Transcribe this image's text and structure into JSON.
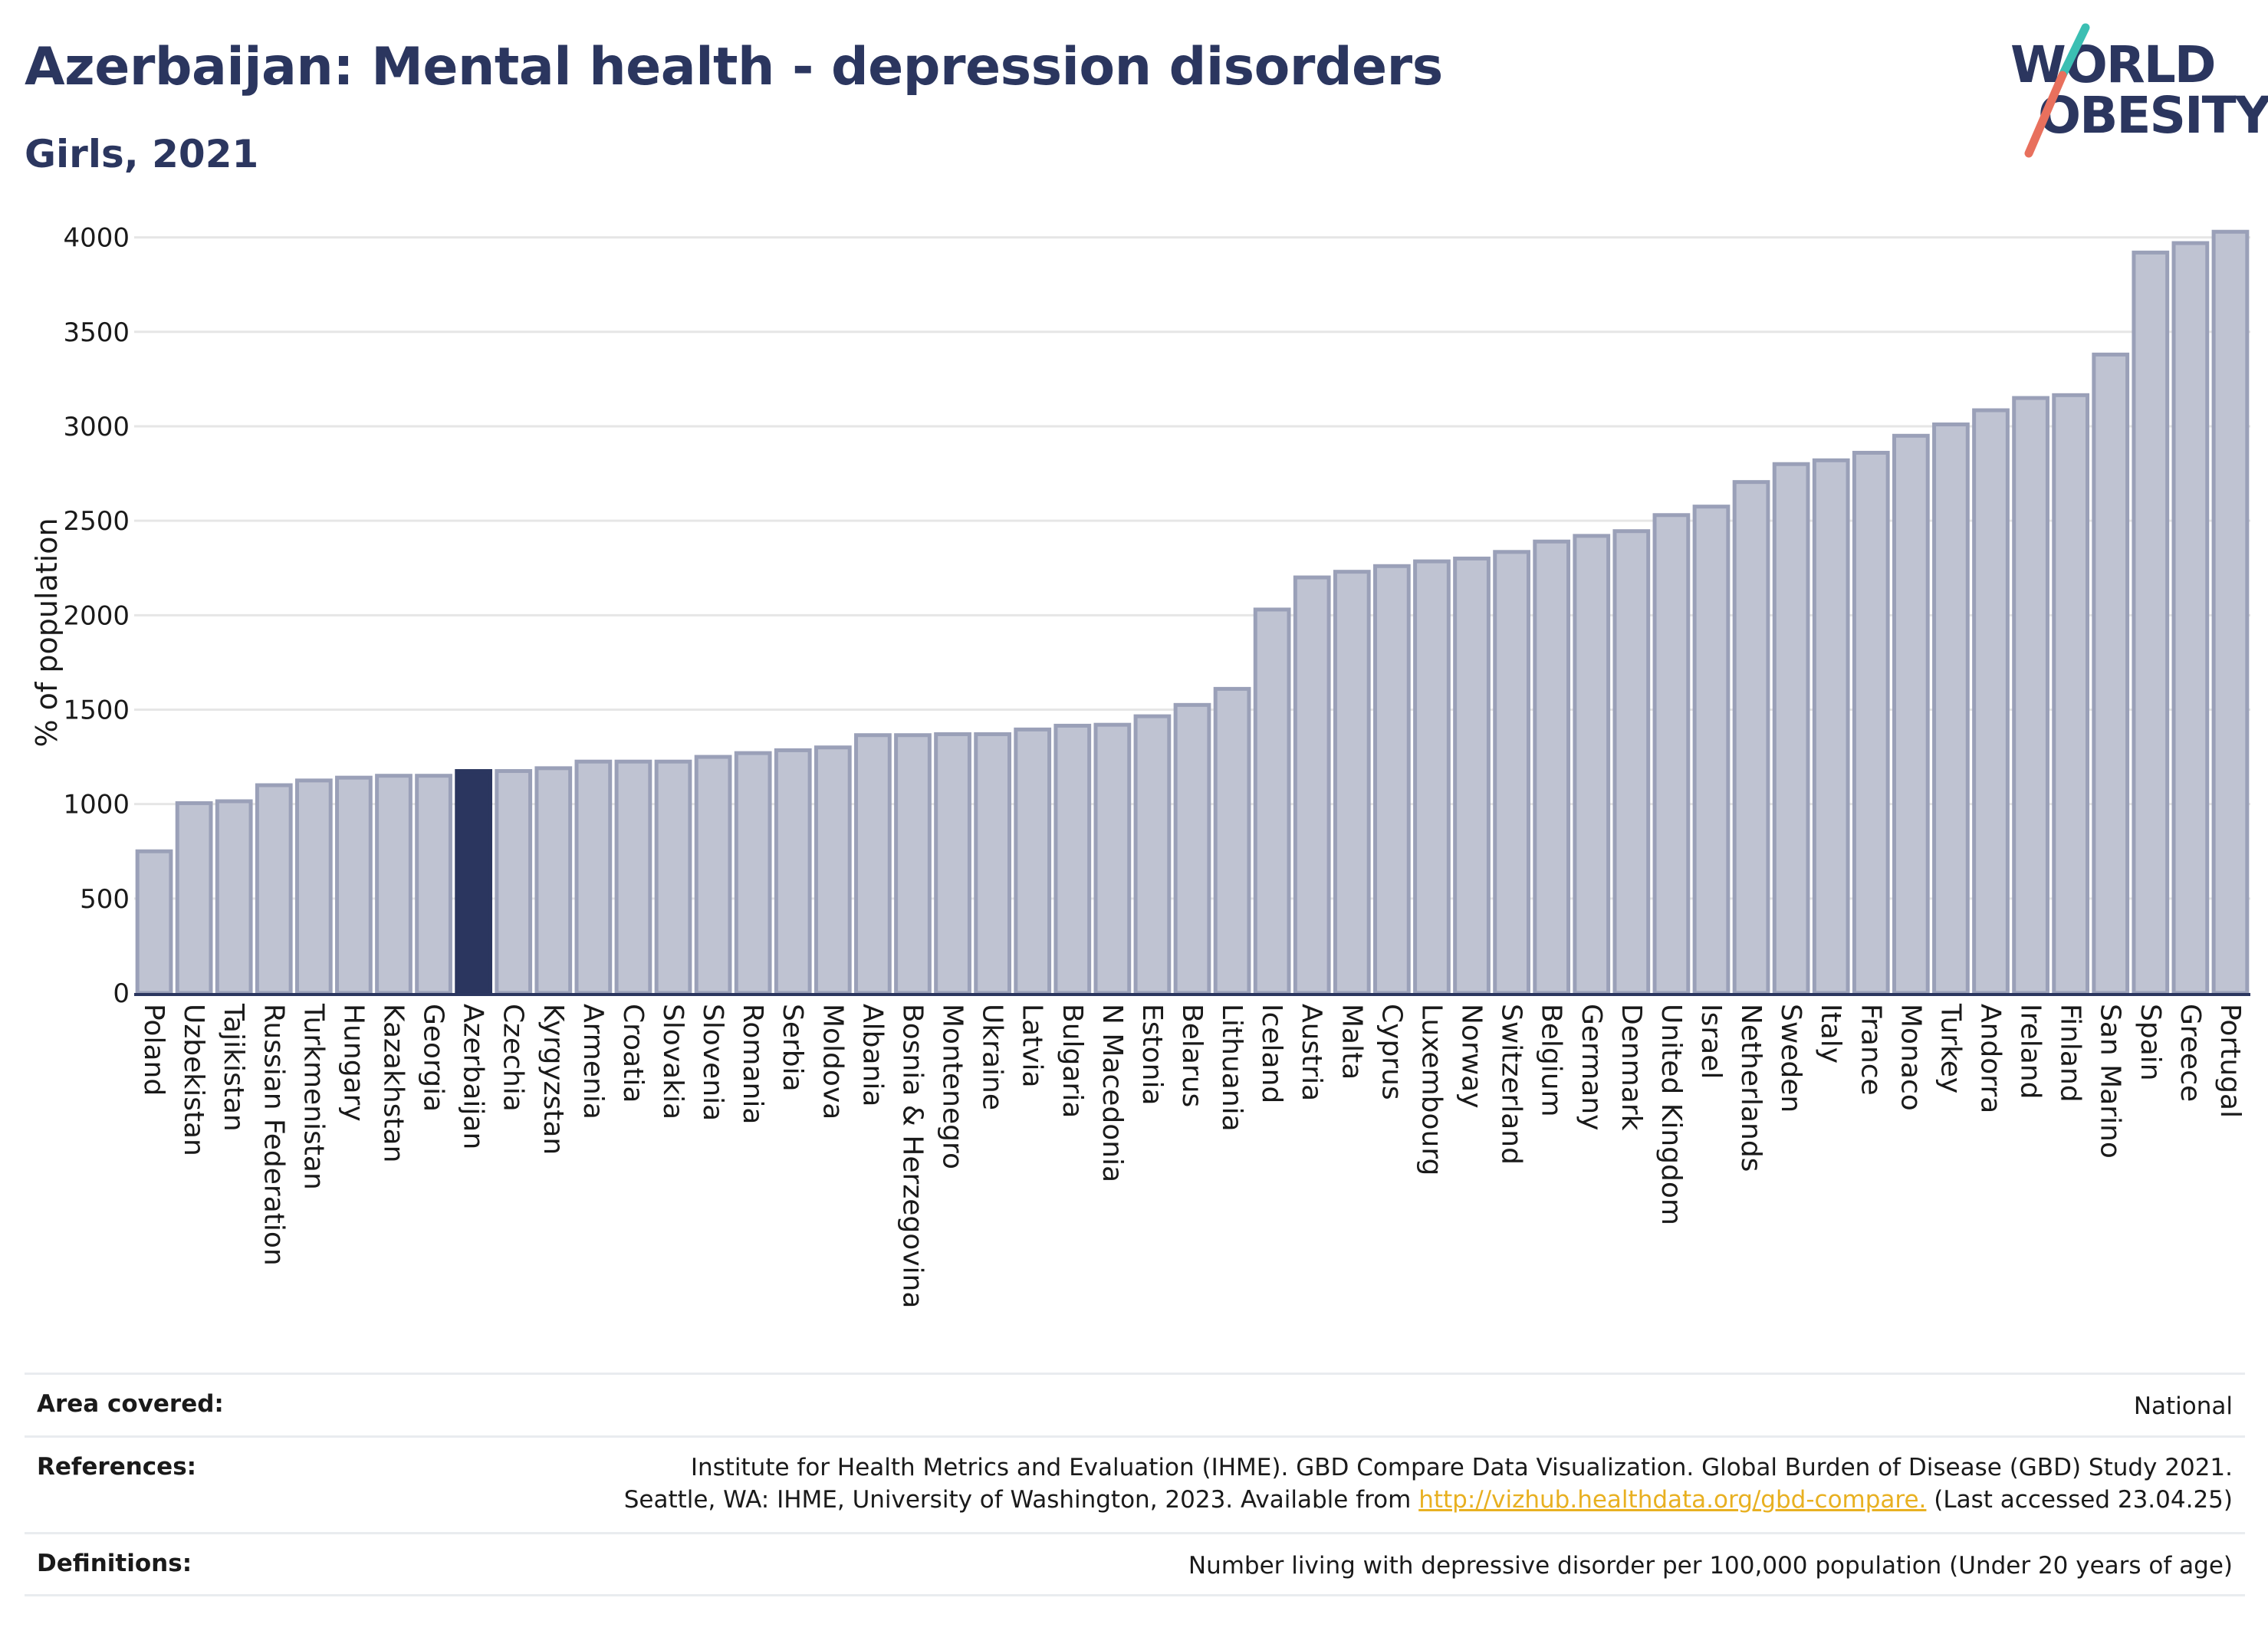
{
  "header": {
    "title": "Azerbaijan: Mental health - depression disorders",
    "subtitle": "Girls, 2021"
  },
  "logo": {
    "line1": "WORLD",
    "line2": "OBESITY"
  },
  "colors": {
    "highlight": "#2b365f",
    "bar_fill": "#bfc3d2",
    "bar_stroke": "#9aa0b8",
    "grid": "#e6e6e6",
    "axis": "#2b365f",
    "logo_teal": "#3bbfb3",
    "logo_coral": "#e8705d"
  },
  "chart_data": {
    "type": "bar",
    "title": "",
    "xlabel": "",
    "ylabel": "% of population",
    "ylim": [
      0,
      4100
    ],
    "yticks": [
      0,
      500,
      1000,
      1500,
      2000,
      2500,
      3000,
      3500,
      4000
    ],
    "grid": true,
    "highlight": "Azerbaijan",
    "categories": [
      "Poland",
      "Uzbekistan",
      "Tajikistan",
      "Russian Federation",
      "Turkmenistan",
      "Hungary",
      "Kazakhstan",
      "Georgia",
      "Azerbaijan",
      "Czechia",
      "Kyrgyzstan",
      "Armenia",
      "Croatia",
      "Slovakia",
      "Slovenia",
      "Romania",
      "Serbia",
      "Moldova",
      "Albania",
      "Bosnia & Herzegovina",
      "Montenegro",
      "Ukraine",
      "Latvia",
      "Bulgaria",
      "N Macedonia",
      "Estonia",
      "Belarus",
      "Lithuania",
      "Iceland",
      "Austria",
      "Malta",
      "Cyprus",
      "Luxembourg",
      "Norway",
      "Switzerland",
      "Belgium",
      "Germany",
      "Denmark",
      "United Kingdom",
      "Israel",
      "Netherlands",
      "Sweden",
      "Italy",
      "France",
      "Monaco",
      "Turkey",
      "Andorra",
      "Ireland",
      "Finland",
      "San Marino",
      "Spain",
      "Greece",
      "Portugal"
    ],
    "values": [
      750,
      1005,
      1015,
      1100,
      1125,
      1140,
      1150,
      1150,
      1175,
      1175,
      1190,
      1225,
      1225,
      1225,
      1250,
      1270,
      1285,
      1300,
      1365,
      1365,
      1370,
      1370,
      1395,
      1415,
      1420,
      1465,
      1525,
      1610,
      2030,
      2200,
      2230,
      2260,
      2285,
      2300,
      2335,
      2390,
      2420,
      2445,
      2530,
      2575,
      2705,
      2800,
      2820,
      2860,
      2950,
      3010,
      3085,
      3150,
      3165,
      3380,
      3920,
      3970,
      4030
    ]
  },
  "info": {
    "area_label": "Area covered:",
    "area_value": "National",
    "refs_label": "References:",
    "refs_line1": "Institute for Health Metrics and Evaluation (IHME). GBD Compare Data Visualization. Global Burden of Disease (GBD) Study 2021.",
    "refs_line2_pre": "Seattle, WA: IHME, University of Washington, 2023. Available from ",
    "refs_link": "http://vizhub.healthdata.org/gbd-compare.",
    "refs_line2_post": " (Last accessed 23.04.25)",
    "defs_label": "Definitions:",
    "defs_value": "Number living with depressive disorder per 100,000 population (Under 20 years of age)"
  }
}
